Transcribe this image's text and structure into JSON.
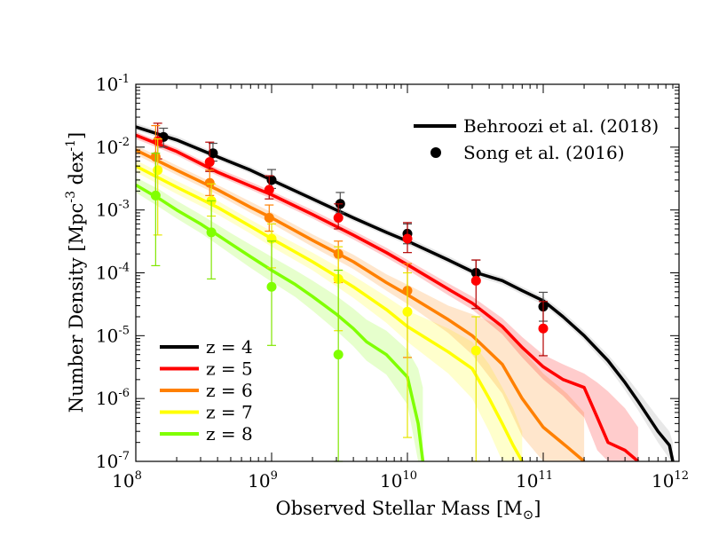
{
  "chart_data": {
    "type": "line",
    "xlabel": "Observed Stellar Mass [M☉]",
    "xlabel_parts": {
      "main": "Observed Stellar Mass [M",
      "sub": "⊙",
      "close": "]"
    },
    "ylabel": "Number Density [Mpc⁻³ dex⁻¹]",
    "ylabel_parts": {
      "a": "Number Density [Mpc",
      "exp1": "-3",
      "b": " dex",
      "exp2": "-1",
      "c": "]"
    },
    "x_scale": "log",
    "y_scale": "log",
    "xlim": [
      100000000.0,
      1000000000000.0
    ],
    "ylim": [
      1e-07,
      0.1
    ],
    "x_ticks": [
      {
        "value": 100000000.0,
        "base": "10",
        "exp": "8"
      },
      {
        "value": 1000000000.0,
        "base": "10",
        "exp": "9"
      },
      {
        "value": 10000000000.0,
        "base": "10",
        "exp": "10"
      },
      {
        "value": 100000000000.0,
        "base": "10",
        "exp": "11"
      },
      {
        "value": 1000000000000.0,
        "base": "10",
        "exp": "12"
      }
    ],
    "y_ticks": [
      {
        "value": 1e-07,
        "base": "10",
        "exp": "-7"
      },
      {
        "value": 1e-06,
        "base": "10",
        "exp": "-6"
      },
      {
        "value": 1e-05,
        "base": "10",
        "exp": "-5"
      },
      {
        "value": 0.0001,
        "base": "10",
        "exp": "-4"
      },
      {
        "value": 0.001,
        "base": "10",
        "exp": "-3"
      },
      {
        "value": 0.01,
        "base": "10",
        "exp": "-2"
      },
      {
        "value": 0.1,
        "base": "10",
        "exp": "-1"
      }
    ],
    "grid": false,
    "legend_source": {
      "position": "top-right",
      "entries": [
        {
          "label": "Behroozi et al. (2018)",
          "marker": "line",
          "color": "#000000"
        },
        {
          "label": "Song et al. (2016)",
          "marker": "circle",
          "color": "#000000"
        }
      ]
    },
    "legend_redshift": {
      "position": "bottom-left",
      "entries": [
        {
          "label": "z = 4",
          "color": "#000000"
        },
        {
          "label": "z = 5",
          "color": "#ff0000"
        },
        {
          "label": "z = 6",
          "color": "#ff8000"
        },
        {
          "label": "z = 7",
          "color": "#ffff00"
        },
        {
          "label": "z = 8",
          "color": "#80ff00"
        }
      ]
    },
    "model_series": [
      {
        "name": "z = 8",
        "color": "#80ff00",
        "band_color": "#80ff00",
        "x": [
          100000000.0,
          150000000.0,
          200000000.0,
          300000000.0,
          400000000.0,
          500000000.0,
          700000000.0,
          1000000000.0,
          1500000000.0,
          2000000000.0,
          3000000000.0,
          4000000000.0,
          5000000000.0,
          7000000000.0,
          10000000000.0,
          12000000000.0,
          13000000000.0
        ],
        "y": [
          0.0025,
          0.0015,
          0.001,
          0.0006,
          0.0004,
          0.00029,
          0.00018,
          0.00011,
          6.5e-05,
          4.2e-05,
          2.2e-05,
          1.3e-05,
          8e-06,
          5e-06,
          2.2e-06,
          4e-07,
          1e-07
        ],
        "band_lo": [
          0.0019,
          0.0011,
          0.00073,
          0.00043,
          0.00028,
          0.0002,
          0.00012,
          7.2e-05,
          4.1e-05,
          2.5e-05,
          1.2e-05,
          6.8e-06,
          4e-06,
          2.4e-06,
          8e-07,
          1e-07,
          1e-07
        ],
        "band_hi": [
          0.0033,
          0.0021,
          0.0014,
          0.00085,
          0.00058,
          0.00043,
          0.00028,
          0.00018,
          0.00011,
          7.5e-05,
          4.3e-05,
          2.7e-05,
          1.8e-05,
          1.2e-05,
          6e-06,
          3e-06,
          1.5e-06
        ]
      },
      {
        "name": "z = 7",
        "color": "#ffff00",
        "band_color": "#ffff00",
        "x": [
          100000000.0,
          200000000.0,
          400000000.0,
          700000000.0,
          1000000000.0,
          2000000000.0,
          4000000000.0,
          7000000000.0,
          10000000000.0,
          20000000000.0,
          30000000000.0,
          40000000000.0,
          50000000000.0,
          60000000000.0,
          70000000000.0
        ],
        "y": [
          0.005,
          0.0023,
          0.0011,
          0.00055,
          0.00035,
          0.00015,
          6e-05,
          2.6e-05,
          1.4e-05,
          5.5e-06,
          3e-06,
          1e-06,
          4e-07,
          1.8e-07,
          1e-07
        ],
        "band_lo": [
          0.004,
          0.0018,
          0.00085,
          0.00042,
          0.00026,
          0.00011,
          4e-05,
          1.6e-05,
          8e-06,
          2.5e-06,
          1e-06,
          3e-07,
          1e-07,
          1e-07,
          1e-07
        ],
        "band_hi": [
          0.0062,
          0.0029,
          0.0014,
          0.0007,
          0.00046,
          0.00021,
          9e-05,
          4.2e-05,
          2.5e-05,
          1.3e-05,
          8e-06,
          3.5e-06,
          1.5e-06,
          7e-07,
          3e-07
        ]
      },
      {
        "name": "z = 6",
        "color": "#ff8000",
        "band_color": "#ff8000",
        "x": [
          100000000.0,
          200000000.0,
          400000000.0,
          700000000.0,
          1000000000.0,
          2000000000.0,
          4000000000.0,
          7000000000.0,
          10000000000.0,
          20000000000.0,
          30000000000.0,
          50000000000.0,
          70000000000.0,
          100000000000.0,
          150000000000.0,
          200000000000.0
        ],
        "y": [
          0.009,
          0.0043,
          0.0021,
          0.0011,
          0.00075,
          0.00033,
          0.00015,
          7e-05,
          4.5e-05,
          1.8e-05,
          1e-05,
          3.5e-06,
          1e-06,
          3.5e-07,
          1.7e-07,
          1e-07
        ],
        "band_lo": [
          0.0076,
          0.0036,
          0.00175,
          0.0009,
          0.00061,
          0.00026,
          0.000115,
          5.2e-05,
          3.2e-05,
          1.1e-05,
          5e-06,
          1.2e-06,
          2.5e-07,
          1e-07,
          1e-07,
          1e-07
        ],
        "band_hi": [
          0.0107,
          0.0051,
          0.0025,
          0.00135,
          0.00092,
          0.00041,
          0.000195,
          9.5e-05,
          6.5e-05,
          3e-05,
          2.2e-05,
          1.4e-05,
          6e-06,
          2.5e-06,
          1.2e-06,
          6e-07
        ]
      },
      {
        "name": "z = 5",
        "color": "#ff0000",
        "band_color": "#ff0000",
        "x": [
          100000000.0,
          200000000.0,
          400000000.0,
          700000000.0,
          1000000000.0,
          2000000000.0,
          4000000000.0,
          7000000000.0,
          10000000000.0,
          20000000000.0,
          30000000000.0,
          50000000000.0,
          70000000000.0,
          100000000000.0,
          140000000000.0,
          200000000000.0,
          250000000000.0,
          300000000000.0,
          400000000000.0,
          500000000000.0
        ],
        "y": [
          0.0155,
          0.0085,
          0.004,
          0.0024,
          0.00175,
          0.00085,
          0.0004,
          0.00021,
          0.000135,
          5.5e-05,
          3.3e-05,
          1.4e-05,
          6.5e-06,
          3.2e-06,
          2e-06,
          1.5e-06,
          5e-07,
          2e-07,
          1.5e-07,
          1e-07
        ],
        "band_lo": [
          0.0135,
          0.0074,
          0.0035,
          0.0021,
          0.0015,
          0.00073,
          0.00034,
          0.000175,
          0.000112,
          4.4e-05,
          2.6e-05,
          1.05e-05,
          4.5e-06,
          2e-06,
          1.1e-06,
          5e-07,
          1.5e-07,
          1e-07,
          1e-07,
          1e-07
        ],
        "band_hi": [
          0.0175,
          0.0097,
          0.0046,
          0.0028,
          0.002,
          0.001,
          0.00047,
          0.00025,
          0.00016,
          6.8e-05,
          4.2e-05,
          1.9e-05,
          9.5e-06,
          5e-06,
          3.5e-06,
          2.5e-06,
          1.8e-06,
          1.3e-06,
          7e-07,
          3.5e-07
        ]
      },
      {
        "name": "z = 4",
        "color": "#000000",
        "band_color": "#8c8c8c",
        "x": [
          100000000.0,
          200000000.0,
          400000000.0,
          700000000.0,
          1000000000.0,
          2000000000.0,
          4000000000.0,
          7000000000.0,
          10000000000.0,
          20000000000.0,
          30000000000.0,
          50000000000.0,
          70000000000.0,
          100000000000.0,
          140000000000.0,
          200000000000.0,
          300000000000.0,
          400000000000.0,
          500000000000.0,
          700000000000.0,
          850000000000.0,
          900000000000.0
        ],
        "y": [
          0.021,
          0.013,
          0.007,
          0.0043,
          0.003,
          0.0015,
          0.00075,
          0.00044,
          0.00032,
          0.00016,
          0.000105,
          7.5e-05,
          5.2e-05,
          3.6e-05,
          2e-05,
          1e-05,
          4e-06,
          1.8e-06,
          9e-07,
          3e-07,
          1.8e-07,
          1e-07
        ],
        "band_lo": [
          0.0185,
          0.0115,
          0.0062,
          0.0038,
          0.00265,
          0.00132,
          0.00066,
          0.00039,
          0.00028,
          0.00014,
          9.2e-05,
          6.5e-05,
          4.5e-05,
          3.1e-05,
          1.7e-05,
          8.4e-06,
          3.2e-06,
          1.35e-06,
          6.5e-07,
          2e-07,
          1.1e-07,
          1e-07
        ],
        "band_hi": [
          0.024,
          0.015,
          0.0079,
          0.0049,
          0.0034,
          0.0017,
          0.00085,
          0.0005,
          0.00037,
          0.000185,
          0.00012,
          8.6e-05,
          6e-05,
          4.2e-05,
          2.4e-05,
          1.2e-05,
          5e-06,
          2.4e-06,
          1.3e-06,
          5e-07,
          3e-07,
          2e-07
        ]
      }
    ],
    "observations": [
      {
        "name": "z = 4",
        "color": "#000000",
        "errbar_color": "#4d4d4d",
        "points": [
          {
            "x": 160000000.0,
            "y": 0.0145,
            "lo": 0.01,
            "hi": 0.02
          },
          {
            "x": 370000000.0,
            "y": 0.008,
            "lo": 0.006,
            "hi": 0.0115
          },
          {
            "x": 1000000000.0,
            "y": 0.003,
            "lo": 0.0022,
            "hi": 0.0044
          },
          {
            "x": 3200000000.0,
            "y": 0.00125,
            "lo": 0.0009,
            "hi": 0.0019
          },
          {
            "x": 10000000000.0,
            "y": 0.00042,
            "lo": 0.00029,
            "hi": 0.0006
          },
          {
            "x": 32000000000.0,
            "y": 0.0001,
            "lo": 7e-05,
            "hi": 0.00016
          },
          {
            "x": 100000000000.0,
            "y": 2.9e-05,
            "lo": 1.7e-05,
            "hi": 4.9e-05
          }
        ]
      },
      {
        "name": "z = 5",
        "color": "#ff0000",
        "errbar_color": "#b30000",
        "points": [
          {
            "x": 145000000.0,
            "y": 0.0125,
            "lo": 0.0065,
            "hi": 0.024
          },
          {
            "x": 350000000.0,
            "y": 0.0058,
            "lo": 0.0041,
            "hi": 0.012
          },
          {
            "x": 960000000.0,
            "y": 0.0021,
            "lo": 0.0015,
            "hi": 0.0035
          },
          {
            "x": 3100000000.0,
            "y": 0.00075,
            "lo": 0.0005,
            "hi": 0.00125
          },
          {
            "x": 10000000000.0,
            "y": 0.00035,
            "lo": 0.00021,
            "hi": 0.00063
          },
          {
            "x": 32000000000.0,
            "y": 7.5e-05,
            "lo": 2.7e-05,
            "hi": 0.00016
          },
          {
            "x": 100000000000.0,
            "y": 1.3e-05,
            "lo": 4.8e-06,
            "hi": 3.5e-05
          }
        ]
      },
      {
        "name": "z = 6",
        "color": "#ff8000",
        "errbar_color": "#ff8000",
        "points": [
          {
            "x": 140000000.0,
            "y": 0.007,
            "lo": 0.0018,
            "hi": 0.022
          },
          {
            "x": 350000000.0,
            "y": 0.0027,
            "lo": 0.0017,
            "hi": 0.0043
          },
          {
            "x": 960000000.0,
            "y": 0.00075,
            "lo": 0.00046,
            "hi": 0.0012
          },
          {
            "x": 3100000000.0,
            "y": 0.0002,
            "lo": 7e-05,
            "hi": 0.00032
          },
          {
            "x": 10000000000.0,
            "y": 5.2e-05,
            "lo": 4.5e-06,
            "hi": 0.00014
          }
        ]
      },
      {
        "name": "z = 7",
        "color": "#ffff00",
        "errbar_color": "#e6e600",
        "points": [
          {
            "x": 145000000.0,
            "y": 0.0043,
            "lo": 0.0004,
            "hi": 0.0135
          },
          {
            "x": 360000000.0,
            "y": 0.0014,
            "lo": 0.0008,
            "hi": 0.0026
          },
          {
            "x": 1000000000.0,
            "y": 0.00035,
            "lo": 0.00012,
            "hi": 0.0006
          },
          {
            "x": 3100000000.0,
            "y": 8e-05,
            "lo": 1.2e-05,
            "hi": 0.00026
          },
          {
            "x": 10000000000.0,
            "y": 2.4e-05,
            "lo": 2.4e-07,
            "hi": 0.0001
          },
          {
            "x": 32000000000.0,
            "y": 5.8e-06,
            "lo": 1e-07,
            "hi": 2e-05
          }
        ]
      },
      {
        "name": "z = 8",
        "color": "#80ff00",
        "errbar_color": "#80e600",
        "points": [
          {
            "x": 140000000.0,
            "y": 0.0017,
            "lo": 0.00013,
            "hi": 0.008
          },
          {
            "x": 360000000.0,
            "y": 0.00044,
            "lo": 8e-05,
            "hi": 0.0014
          },
          {
            "x": 1000000000.0,
            "y": 6e-05,
            "lo": 7e-06,
            "hi": 0.00032
          },
          {
            "x": 3100000000.0,
            "y": 5e-06,
            "lo": 1e-07,
            "hi": 0.00011
          }
        ]
      }
    ]
  }
}
